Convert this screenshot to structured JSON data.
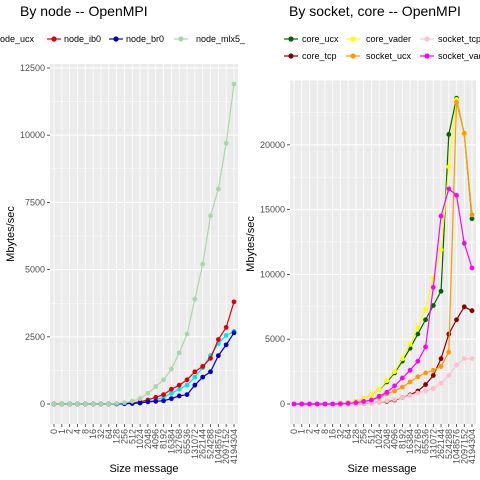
{
  "chart_data": [
    {
      "type": "line",
      "title": "By node -- OpenMPI",
      "xlabel": "Size message",
      "ylabel": "Mbytes/sec",
      "x": [
        "0",
        "1",
        "2",
        "4",
        "8",
        "16",
        "32",
        "64",
        "128",
        "256",
        "512",
        "1024",
        "2048",
        "4096",
        "8192",
        "16384",
        "32768",
        "65536",
        "131072",
        "262144",
        "524288",
        "1048576",
        "2097152",
        "4194304"
      ],
      "ylim": [
        0,
        12500
      ],
      "yticks": [
        0,
        2500,
        5000,
        7500,
        10000,
        12500
      ],
      "ytick_labels": [
        "0",
        "2500",
        "5000",
        "7500",
        "10000",
        "12500"
      ],
      "legend": "top",
      "grid": true,
      "series": [
        {
          "name": "node_ucx",
          "color": "#00e5ee",
          "values": [
            0,
            0,
            0,
            0,
            0,
            0,
            0,
            0,
            5,
            10,
            20,
            40,
            80,
            150,
            250,
            400,
            550,
            700,
            1000,
            1350,
            1800,
            2250,
            2550,
            2700
          ]
        },
        {
          "name": "node_ib0",
          "color": "#e00000",
          "values": [
            0,
            0,
            0,
            0,
            0,
            0,
            0,
            0,
            10,
            20,
            40,
            80,
            150,
            250,
            350,
            550,
            700,
            900,
            1200,
            1400,
            1700,
            2400,
            2850,
            3800
          ]
        },
        {
          "name": "node_br0",
          "color": "#0000cc",
          "values": [
            0,
            0,
            0,
            0,
            0,
            0,
            0,
            0,
            5,
            10,
            20,
            40,
            80,
            100,
            120,
            200,
            300,
            350,
            700,
            1000,
            1200,
            1800,
            2200,
            2650
          ]
        },
        {
          "name": "node_mlx5_",
          "color": "#a8d8a8",
          "values": [
            0,
            0,
            0,
            0,
            0,
            0,
            0,
            0,
            20,
            50,
            100,
            200,
            400,
            650,
            900,
            1300,
            1900,
            2600,
            3900,
            5200,
            7000,
            8000,
            9700,
            11900
          ]
        }
      ]
    },
    {
      "type": "line",
      "title": "By socket, core -- OpenMPI",
      "xlabel": "Size message",
      "ylabel": "Mbytes/sec",
      "x": [
        "0",
        "1",
        "2",
        "4",
        "8",
        "16",
        "32",
        "64",
        "128",
        "256",
        "512",
        "1024",
        "2048",
        "4096",
        "8192",
        "16384",
        "32768",
        "65536",
        "131072",
        "262144",
        "524288",
        "1048576",
        "2097152",
        "4194304"
      ],
      "ylim": [
        0,
        25000
      ],
      "yticks": [
        0,
        5000,
        10000,
        15000,
        20000
      ],
      "ytick_labels": [
        "0",
        "5000",
        "10000",
        "15000",
        "20000"
      ],
      "legend": "top",
      "grid": true,
      "series": [
        {
          "name": "core_ucx",
          "color": "#006400",
          "values": [
            0,
            0,
            0,
            0,
            0,
            0,
            50,
            100,
            200,
            400,
            700,
            1100,
            1700,
            2400,
            3300,
            4300,
            5400,
            6500,
            7600,
            8700,
            20800,
            23600,
            20800,
            14300
          ]
        },
        {
          "name": "core_tcp",
          "color": "#8b0000",
          "values": [
            0,
            0,
            0,
            0,
            0,
            0,
            0,
            10,
            20,
            40,
            80,
            150,
            200,
            300,
            500,
            700,
            1000,
            1500,
            2200,
            3500,
            5400,
            6500,
            7500,
            7200
          ]
        },
        {
          "name": "core_vader",
          "color": "#ffff00",
          "values": [
            0,
            0,
            0,
            0,
            0,
            0,
            50,
            100,
            200,
            400,
            700,
            1100,
            1800,
            2500,
            3500,
            4600,
            5900,
            7300,
            9700,
            11900,
            18300,
            23500,
            20800,
            14600
          ]
        },
        {
          "name": "socket_ucx",
          "color": "#ff9900",
          "values": [
            0,
            0,
            0,
            0,
            0,
            0,
            20,
            50,
            100,
            200,
            300,
            500,
            800,
            1000,
            1300,
            1700,
            2100,
            2400,
            2600,
            2900,
            4000,
            23300,
            20900,
            14600
          ]
        },
        {
          "name": "socket_tcp",
          "color": "#ffc0cb",
          "values": [
            0,
            0,
            0,
            0,
            0,
            0,
            0,
            10,
            20,
            40,
            80,
            150,
            250,
            350,
            500,
            650,
            850,
            1000,
            1200,
            1600,
            2200,
            3000,
            3500,
            3500
          ]
        },
        {
          "name": "socket_vader",
          "color": "#ff00ff",
          "values": [
            0,
            0,
            0,
            0,
            0,
            0,
            20,
            50,
            100,
            200,
            300,
            600,
            900,
            1400,
            2000,
            2600,
            3300,
            4400,
            9000,
            14500,
            16600,
            16100,
            12400,
            10500
          ]
        }
      ]
    }
  ]
}
